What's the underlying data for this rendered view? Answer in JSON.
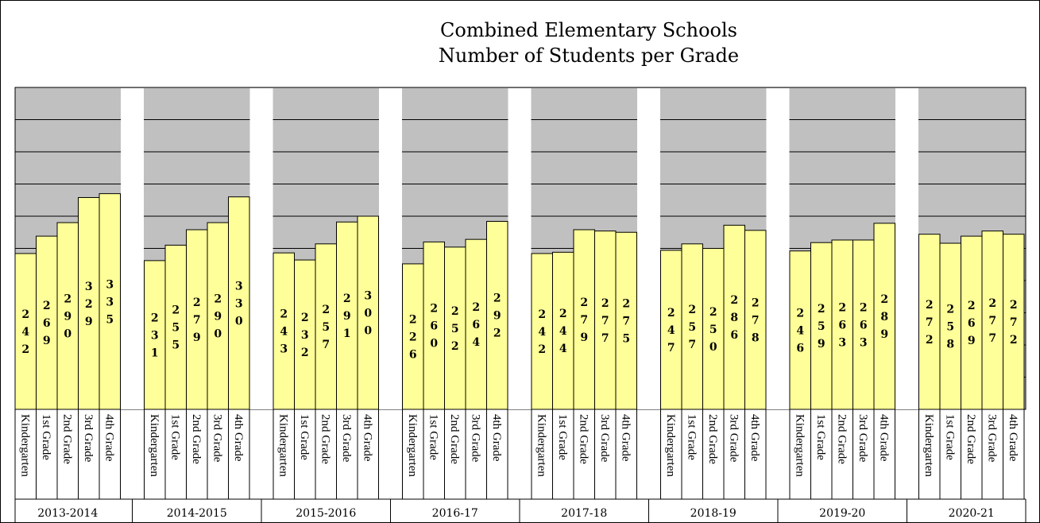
{
  "chart_data": {
    "type": "bar",
    "title": "Combined Elementary Schools",
    "subtitle": "Number of Students per Grade",
    "ylim": [
      0,
      500
    ],
    "grid": true,
    "grade_labels": [
      "Kindergarten",
      "1st Grade",
      "2nd Grade",
      "3rd Grade",
      "4th Grade"
    ],
    "groups": [
      {
        "label": "2013-2014",
        "values": [
          242,
          269,
          290,
          329,
          335
        ]
      },
      {
        "label": "2014-2015",
        "values": [
          231,
          255,
          279,
          290,
          330
        ]
      },
      {
        "label": "2015-2016",
        "values": [
          243,
          232,
          257,
          291,
          300
        ]
      },
      {
        "label": "2016-17",
        "values": [
          226,
          260,
          252,
          264,
          292
        ]
      },
      {
        "label": "2017-18",
        "values": [
          242,
          244,
          279,
          277,
          275
        ]
      },
      {
        "label": "2018-19",
        "values": [
          247,
          257,
          250,
          286,
          278
        ]
      },
      {
        "label": "2019-20",
        "values": [
          246,
          259,
          263,
          263,
          289
        ]
      },
      {
        "label": "2020-21",
        "values": [
          272,
          258,
          269,
          277,
          272
        ]
      }
    ],
    "colors": {
      "bar": "#ffff99",
      "plot_background": "#c0c0c0",
      "grid": "#000000"
    }
  }
}
